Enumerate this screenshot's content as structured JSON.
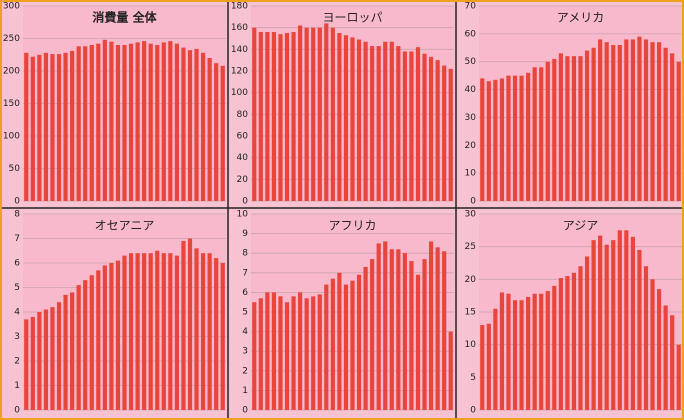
{
  "chart_data": [
    {
      "type": "bar",
      "title": "消費量 全体",
      "bold_title": true,
      "color": "#e8453c",
      "grid": true,
      "ylim": [
        0,
        300
      ],
      "yticks": [
        0,
        50,
        100,
        150,
        200,
        250,
        300
      ],
      "values": [
        228,
        222,
        225,
        228,
        226,
        226,
        228,
        231,
        238,
        238,
        240,
        242,
        248,
        245,
        240,
        240,
        242,
        244,
        246,
        242,
        240,
        244,
        246,
        242,
        236,
        232,
        234,
        228,
        220,
        212,
        208
      ]
    },
    {
      "type": "bar",
      "title": "ヨーロッパ",
      "color": "#e8453c",
      "grid": true,
      "ylim": [
        0,
        180
      ],
      "yticks": [
        0,
        20,
        40,
        60,
        80,
        100,
        120,
        140,
        160,
        180
      ],
      "values": [
        160,
        156,
        156,
        156,
        154,
        155,
        156,
        162,
        160,
        160,
        160,
        164,
        160,
        155,
        153,
        151,
        149,
        147,
        143,
        143,
        147,
        147,
        143,
        138,
        138,
        142,
        136,
        133,
        130,
        125,
        122
      ]
    },
    {
      "type": "bar",
      "title": "アメリカ",
      "color": "#e8453c",
      "grid": true,
      "ylim": [
        0,
        70
      ],
      "yticks": [
        0,
        10,
        20,
        30,
        40,
        50,
        60,
        70
      ],
      "values": [
        44,
        43,
        43.5,
        44,
        45,
        45,
        45,
        46,
        48,
        48,
        50,
        51,
        53,
        52,
        52,
        52,
        54,
        55,
        58,
        57,
        56,
        56,
        58,
        58,
        59,
        58,
        57,
        57,
        55,
        53,
        50
      ]
    },
    {
      "type": "bar",
      "title": "オセアニア",
      "color": "#e8453c",
      "grid": true,
      "ylim": [
        0,
        8
      ],
      "yticks": [
        0,
        1,
        2,
        3,
        4,
        5,
        6,
        7,
        8
      ],
      "values": [
        3.7,
        3.8,
        4.0,
        4.1,
        4.2,
        4.4,
        4.7,
        4.8,
        5.1,
        5.3,
        5.5,
        5.7,
        5.9,
        6.0,
        6.1,
        6.3,
        6.4,
        6.4,
        6.4,
        6.4,
        6.5,
        6.4,
        6.4,
        6.3,
        6.9,
        7.0,
        6.6,
        6.4,
        6.4,
        6.2,
        6.0
      ]
    },
    {
      "type": "bar",
      "title": "アフリカ",
      "color": "#e8453c",
      "grid": true,
      "ylim": [
        0,
        10
      ],
      "yticks": [
        0,
        1,
        2,
        3,
        4,
        5,
        6,
        7,
        8,
        9,
        10
      ],
      "values": [
        5.5,
        5.7,
        6.0,
        6.0,
        5.8,
        5.5,
        5.8,
        6.0,
        5.7,
        5.8,
        5.9,
        6.4,
        6.7,
        7.0,
        6.4,
        6.6,
        6.9,
        7.3,
        7.7,
        8.5,
        8.6,
        8.2,
        8.2,
        8.0,
        7.6,
        6.9,
        7.7,
        8.6,
        8.3,
        8.1,
        4.0
      ]
    },
    {
      "type": "bar",
      "title": "アジア",
      "color": "#e8453c",
      "grid": true,
      "ylim": [
        0,
        30
      ],
      "yticks": [
        0,
        5,
        10,
        15,
        20,
        25,
        30
      ],
      "values": [
        13,
        13.2,
        15.5,
        18,
        17.8,
        16.8,
        16.8,
        17.3,
        17.8,
        17.8,
        18.2,
        19,
        20.2,
        20.5,
        21,
        22,
        23.5,
        26,
        26.7,
        25.3,
        26,
        27.5,
        27.5,
        26.5,
        24.5,
        22,
        20,
        18.5,
        16,
        14.5,
        10
      ]
    }
  ]
}
